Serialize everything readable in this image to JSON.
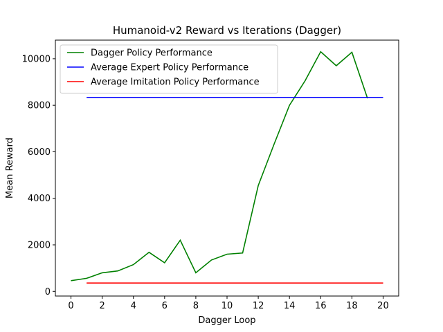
{
  "chart_data": {
    "type": "line",
    "title": "Humanoid-v2 Reward vs Iterations (Dagger)",
    "xlabel": "Dagger Loop",
    "ylabel": "Mean Reward",
    "xlim": [
      -1,
      21
    ],
    "ylim": [
      -200,
      10800
    ],
    "xticks": [
      0,
      2,
      4,
      6,
      8,
      10,
      12,
      14,
      16,
      18,
      20
    ],
    "yticks": [
      0,
      2000,
      4000,
      6000,
      8000,
      10000
    ],
    "grid": false,
    "legend_position": "top-left",
    "series": [
      {
        "name": "Dagger Policy Performance",
        "color": "#008000",
        "x": [
          0,
          1,
          2,
          3,
          4,
          5,
          6,
          7,
          8,
          9,
          10,
          11,
          12,
          13,
          14,
          15,
          16,
          17,
          18,
          19
        ],
        "y": [
          460,
          560,
          800,
          880,
          1150,
          1680,
          1230,
          2200,
          800,
          1350,
          1600,
          1650,
          4550,
          6300,
          8000,
          9050,
          10300,
          9700,
          10280,
          8300
        ]
      },
      {
        "name": "Average Expert Policy Performance",
        "color": "#0000ff",
        "x": [
          1,
          20
        ],
        "y": [
          8330,
          8330
        ]
      },
      {
        "name": "Average Imitation Policy Performance",
        "color": "#ff0000",
        "x": [
          1,
          20
        ],
        "y": [
          360,
          360
        ]
      }
    ]
  }
}
